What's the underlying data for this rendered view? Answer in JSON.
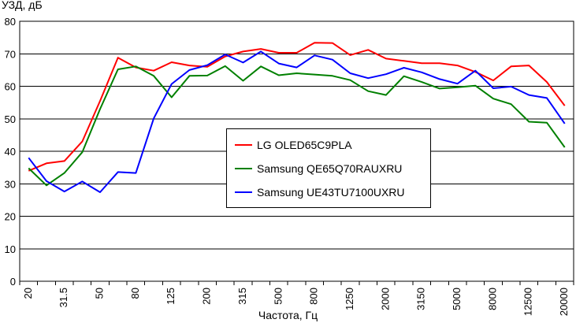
{
  "chart_data": {
    "type": "line",
    "ylabel": "УЗД, дБ",
    "xlabel": "Частота, Гц",
    "ylim": [
      0,
      80
    ],
    "yticks": [
      0,
      10,
      20,
      30,
      40,
      50,
      60,
      70,
      80
    ],
    "grid": true,
    "legend_position": "center",
    "x_tick_labels": [
      "20",
      "31.5",
      "50",
      "80",
      "125",
      "200",
      "315",
      "500",
      "800",
      "1250",
      "2000",
      "3150",
      "5000",
      "8000",
      "12500",
      "20000"
    ],
    "x": [
      "20",
      "25",
      "31.5",
      "40",
      "50",
      "63",
      "80",
      "100",
      "125",
      "160",
      "200",
      "250",
      "315",
      "400",
      "500",
      "630",
      "800",
      "1000",
      "1250",
      "1600",
      "2000",
      "2500",
      "3150",
      "4000",
      "5000",
      "6300",
      "8000",
      "10000",
      "12500",
      "16000",
      "20000"
    ],
    "series": [
      {
        "name": "LG OLED65C9PLA",
        "color": "#ff0000",
        "values": [
          34.0,
          36.3,
          37.0,
          43.0,
          55.5,
          68.8,
          65.8,
          64.8,
          67.4,
          66.4,
          66.0,
          69.2,
          70.7,
          71.5,
          70.3,
          70.3,
          73.4,
          73.3,
          69.6,
          71.2,
          68.5,
          67.8,
          67.1,
          67.1,
          66.4,
          64.4,
          61.8,
          66.1,
          66.4,
          61.3,
          54.0
        ]
      },
      {
        "name": "Samsung QE65Q70RAUXRU",
        "color": "#008000",
        "values": [
          34.8,
          29.5,
          33.3,
          39.7,
          53.0,
          65.2,
          66.1,
          63.2,
          56.6,
          63.2,
          63.3,
          66.2,
          61.7,
          66.1,
          63.4,
          64.0,
          63.6,
          63.2,
          61.9,
          58.5,
          57.3,
          63.1,
          61.3,
          59.3,
          59.7,
          60.2,
          56.2,
          54.5,
          49.1,
          48.8,
          41.2
        ]
      },
      {
        "name": "Samsung UE43TU7100UXRU",
        "color": "#0000ff",
        "values": [
          38.0,
          30.8,
          27.6,
          30.7,
          27.4,
          33.6,
          33.3,
          50.1,
          60.7,
          65.0,
          66.5,
          69.8,
          67.3,
          70.7,
          67.0,
          65.8,
          69.5,
          68.2,
          64.0,
          62.5,
          63.7,
          65.7,
          64.3,
          62.2,
          60.8,
          64.8,
          59.4,
          59.9,
          57.3,
          56.4,
          48.5
        ]
      }
    ]
  }
}
